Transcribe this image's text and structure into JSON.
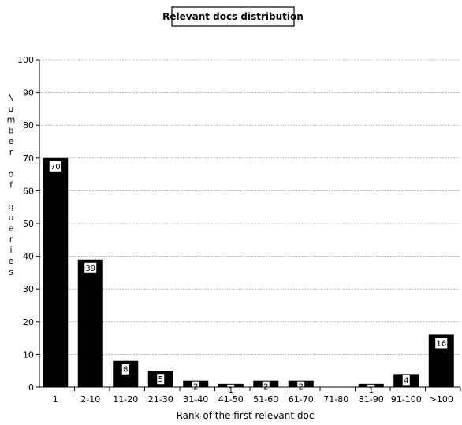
{
  "chart_data": {
    "type": "bar",
    "title": "Relevant docs distribution",
    "xlabel": "Rank of the first relevant doc",
    "ylabel": "Number of queries",
    "categories": [
      "1",
      "2-10",
      "11-20",
      "21-30",
      "31-40",
      "41-50",
      "51-60",
      "61-70",
      "71-80",
      "81-90",
      "91-100",
      ">100"
    ],
    "values": [
      70,
      39,
      8,
      5,
      2,
      1,
      2,
      2,
      0,
      1,
      4,
      16
    ],
    "data_labels": [
      "70",
      "39",
      "8",
      "5",
      "2",
      "1",
      "2",
      "2",
      "0",
      "1",
      "4",
      "16"
    ],
    "ylim": [
      0,
      100
    ],
    "yticks": [
      "0",
      "10",
      "20",
      "30",
      "40",
      "50",
      "60",
      "70",
      "80",
      "90",
      "100"
    ],
    "grid": true,
    "bar_color": "#000000"
  }
}
